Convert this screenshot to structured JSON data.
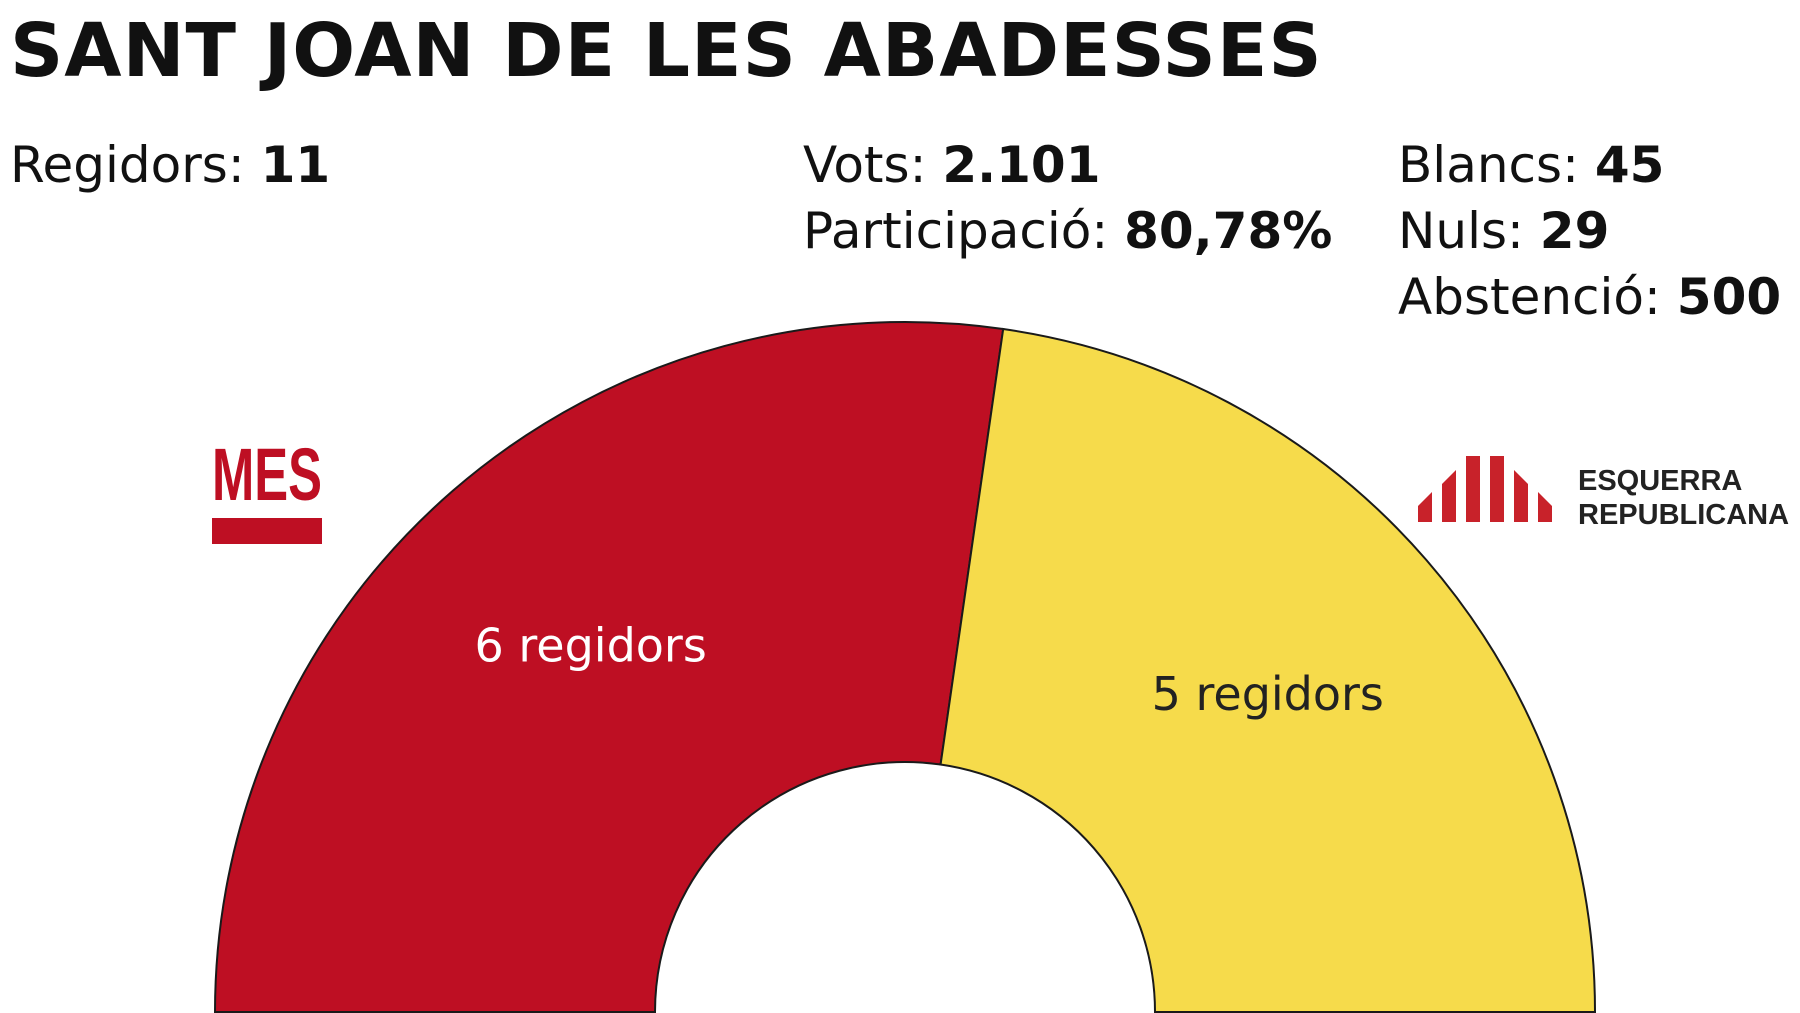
{
  "title": "SANT JOAN DE LES ABADESSES",
  "stats": {
    "regidors_label": "Regidors:",
    "regidors_value": "11",
    "vots_label": "Vots:",
    "vots_value": "2.101",
    "participacio_label": "Participació:",
    "participacio_value": "80,78%",
    "blancs_label": "Blancs:",
    "blancs_value": "45",
    "nuls_label": "Nuls:",
    "nuls_value": "29",
    "abstencio_label": "Abstenció:",
    "abstencio_value": "500"
  },
  "parties": {
    "mes": {
      "logo_text": "MES",
      "color": "#be0f23"
    },
    "erc": {
      "logo_line1": "ESQUERRA",
      "logo_line2": "REPUBLICANA",
      "color": "#f6db4b",
      "logo_color": "#c8222a"
    }
  },
  "chart_data": {
    "type": "pie",
    "subtype": "hemicycle",
    "total_seats": 11,
    "series": [
      {
        "label": "6 regidors",
        "value": 6,
        "color": "#be0f23",
        "text_color": "#ffffff"
      },
      {
        "label": "5 regidors",
        "value": 5,
        "color": "#f6db4b",
        "text_color": "#222222"
      }
    ]
  }
}
